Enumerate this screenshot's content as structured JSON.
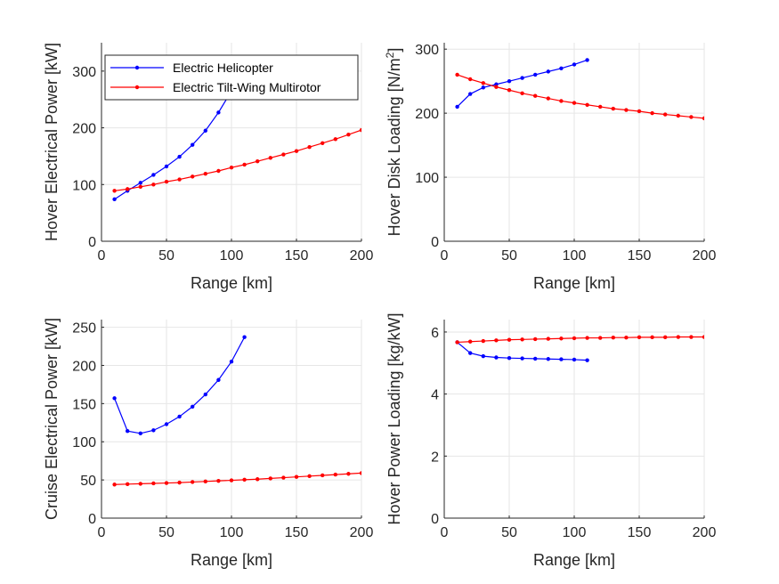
{
  "colors": {
    "helicopter": "#0000ff",
    "tiltwing": "#ff0000",
    "grid": "#e6e6e6",
    "axis": "#262626"
  },
  "legend": {
    "helicopter": "Electric Helicopter",
    "tiltwing": "Electric Tilt-Wing Multirotor"
  },
  "chart_data": [
    {
      "type": "line",
      "xlabel": "Range [km]",
      "ylabel": "Hover Electrical Power [kW]",
      "xlim": [
        0,
        200
      ],
      "ylim": [
        0,
        350
      ],
      "xticks": [
        "0",
        "50",
        "100",
        "150",
        "200"
      ],
      "yticks": [
        "0",
        "100",
        "200",
        "300"
      ],
      "grid": true,
      "legend_position": "top-left",
      "series": [
        {
          "name": "Electric Helicopter",
          "color": "#0000ff",
          "x": [
            10,
            20,
            30,
            40,
            50,
            60,
            70,
            80,
            90,
            100,
            110
          ],
          "y": [
            74,
            89,
            103,
            117,
            132,
            149,
            170,
            195,
            227,
            265,
            310
          ]
        },
        {
          "name": "Electric Tilt-Wing Multirotor",
          "color": "#ff0000",
          "x": [
            10,
            20,
            30,
            40,
            50,
            60,
            70,
            80,
            90,
            100,
            110,
            120,
            130,
            140,
            150,
            160,
            170,
            180,
            190,
            200
          ],
          "y": [
            89,
            92,
            96,
            100,
            105,
            109,
            114,
            119,
            124,
            130,
            135,
            141,
            147,
            153,
            159,
            166,
            173,
            180,
            188,
            196
          ]
        }
      ]
    },
    {
      "type": "line",
      "xlabel": "Range [km]",
      "ylabel": "Hover Disk Loading [N/m",
      "ylabel_superscript": "2",
      "ylabel_suffix": "]",
      "xlim": [
        0,
        200
      ],
      "ylim": [
        0,
        310
      ],
      "xticks": [
        "0",
        "50",
        "100",
        "150",
        "200"
      ],
      "yticks": [
        "0",
        "100",
        "200",
        "300"
      ],
      "grid": true,
      "series": [
        {
          "name": "Electric Helicopter",
          "color": "#0000ff",
          "x": [
            10,
            20,
            30,
            40,
            50,
            60,
            70,
            80,
            90,
            100,
            110
          ],
          "y": [
            210,
            230,
            240,
            245,
            250,
            255,
            260,
            265,
            270,
            276,
            283
          ]
        },
        {
          "name": "Electric Tilt-Wing Multirotor",
          "color": "#ff0000",
          "x": [
            10,
            20,
            30,
            40,
            50,
            60,
            70,
            80,
            90,
            100,
            110,
            120,
            130,
            140,
            150,
            160,
            170,
            180,
            190,
            200
          ],
          "y": [
            260,
            253,
            247,
            241,
            236,
            231,
            227,
            223,
            219,
            216,
            213,
            210,
            207,
            205,
            203,
            200,
            198,
            196,
            194,
            192
          ]
        }
      ]
    },
    {
      "type": "line",
      "xlabel": "Range [km]",
      "ylabel": "Cruise Electrical Power [kW]",
      "xlim": [
        0,
        200
      ],
      "ylim": [
        0,
        260
      ],
      "xticks": [
        "0",
        "50",
        "100",
        "150",
        "200"
      ],
      "yticks": [
        "0",
        "50",
        "100",
        "150",
        "200",
        "250"
      ],
      "grid": true,
      "series": [
        {
          "name": "Electric Helicopter",
          "color": "#0000ff",
          "x": [
            10,
            20,
            30,
            40,
            50,
            60,
            70,
            80,
            90,
            100,
            110
          ],
          "y": [
            157,
            114,
            111,
            115,
            123,
            133,
            146,
            162,
            181,
            205,
            237
          ]
        },
        {
          "name": "Electric Tilt-Wing Multirotor",
          "color": "#ff0000",
          "x": [
            10,
            20,
            30,
            40,
            50,
            60,
            70,
            80,
            90,
            100,
            110,
            120,
            130,
            140,
            150,
            160,
            170,
            180,
            190,
            200
          ],
          "y": [
            44,
            44.5,
            45,
            45.5,
            46,
            46.5,
            47.3,
            48,
            48.8,
            49.5,
            50.3,
            51,
            52,
            53,
            54,
            55,
            56,
            57,
            58,
            59
          ]
        }
      ]
    },
    {
      "type": "line",
      "xlabel": "Range [km]",
      "ylabel": "Hover Power Loading [kg/kW]",
      "xlim": [
        0,
        200
      ],
      "ylim": [
        0,
        6.4
      ],
      "xticks": [
        "0",
        "50",
        "100",
        "150",
        "200"
      ],
      "yticks": [
        "0",
        "2",
        "4",
        "6"
      ],
      "grid": true,
      "series": [
        {
          "name": "Electric Helicopter",
          "color": "#0000ff",
          "x": [
            10,
            20,
            30,
            40,
            50,
            60,
            70,
            80,
            90,
            100,
            110
          ],
          "y": [
            5.67,
            5.32,
            5.22,
            5.18,
            5.16,
            5.15,
            5.14,
            5.13,
            5.12,
            5.11,
            5.09
          ]
        },
        {
          "name": "Electric Tilt-Wing Multirotor",
          "color": "#ff0000",
          "x": [
            10,
            20,
            30,
            40,
            50,
            60,
            70,
            80,
            90,
            100,
            110,
            120,
            130,
            140,
            150,
            160,
            170,
            180,
            190,
            200
          ],
          "y": [
            5.67,
            5.69,
            5.71,
            5.73,
            5.75,
            5.76,
            5.77,
            5.78,
            5.79,
            5.8,
            5.81,
            5.81,
            5.82,
            5.82,
            5.83,
            5.83,
            5.83,
            5.84,
            5.84,
            5.84
          ]
        }
      ]
    }
  ]
}
